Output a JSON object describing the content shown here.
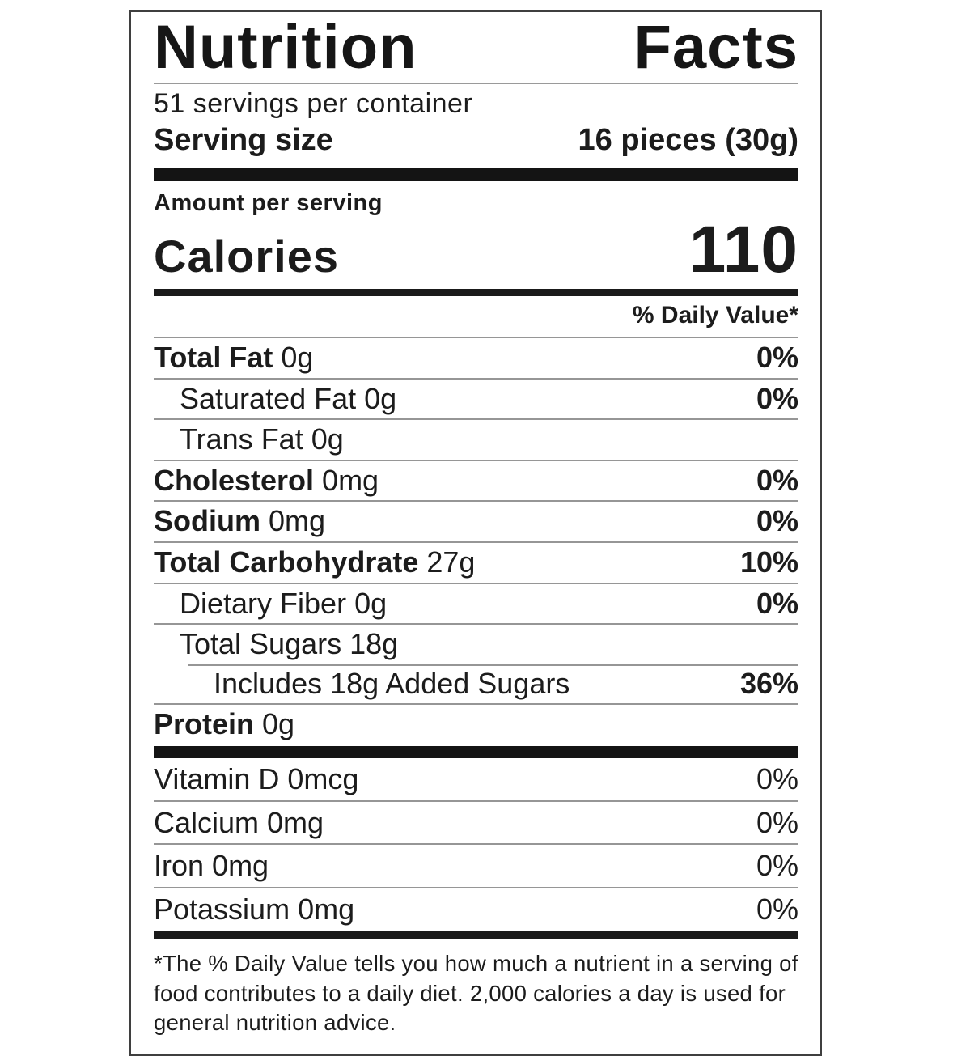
{
  "nutrition_label": {
    "title": "Nutrition Facts",
    "servings_per_container": "51 servings per container",
    "serving_size": {
      "label": "Serving size",
      "value": "16 pieces (30g)"
    },
    "amount_per_serving": "Amount per serving",
    "calories": {
      "label": "Calories",
      "value": "110"
    },
    "daily_value_header": "% Daily Value*",
    "nutrients": [
      {
        "name": "Total Fat",
        "amount": "0g",
        "dv": "0%"
      },
      {
        "name": "Saturated Fat",
        "amount": "0g",
        "dv": "0%"
      },
      {
        "name": "Trans Fat",
        "amount": "0g",
        "dv": ""
      },
      {
        "name": "Cholesterol",
        "amount": "0mg",
        "dv": "0%"
      },
      {
        "name": "Sodium",
        "amount": "0mg",
        "dv": "0%"
      },
      {
        "name": "Total Carbohydrate",
        "amount": "27g",
        "dv": "10%"
      },
      {
        "name": "Dietary Fiber",
        "amount": "0g",
        "dv": "0%"
      },
      {
        "name": "Total Sugars",
        "amount": "18g",
        "dv": ""
      },
      {
        "name": "Includes 18g Added Sugars",
        "amount": "",
        "dv": "36%"
      },
      {
        "name": "Protein",
        "amount": "0g",
        "dv": ""
      }
    ],
    "micronutrients": [
      {
        "name": "Vitamin D",
        "amount": "0mcg",
        "dv": "0%"
      },
      {
        "name": "Calcium",
        "amount": "0mg",
        "dv": "0%"
      },
      {
        "name": "Iron",
        "amount": "0mg",
        "dv": "0%"
      },
      {
        "name": "Potassium",
        "amount": "0mg",
        "dv": "0%"
      }
    ],
    "footnote": "*The % Daily Value tells you how much a nutrient in a serving of food contributes to a daily diet. 2,000 calories a day is used for general nutrition advice."
  },
  "colors": {
    "text": "#1c1c1c",
    "hairline": "#969696",
    "thick_bar": "#141414",
    "border": "#3f3f3f",
    "background": "#ffffff"
  }
}
